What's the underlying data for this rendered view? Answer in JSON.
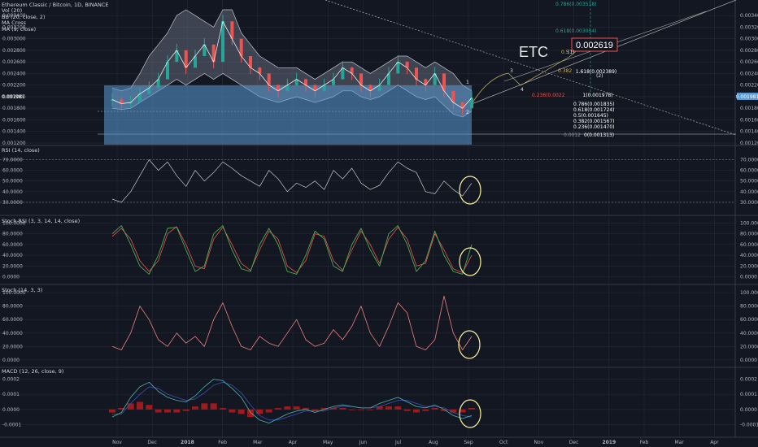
{
  "colors": {
    "background": "#131722",
    "grid": "#252a36",
    "pane_border": "#363a45",
    "rsi_line": "#c9c9c9",
    "stoch_rsi_k": "#4caf50",
    "stoch_rsi_d": "#ef5350",
    "stoch_k": "#f08080",
    "macd_line": "#4db6ac",
    "signal_line": "#3f51b5",
    "histogram": "#b71c1c",
    "highlight_circle": "#fff59d",
    "volume_fill": "#5b9bd5",
    "bb_fill": "#8c96a8",
    "fib_text": "#ffffff",
    "fib_green": "#26a69a",
    "fib_red": "#ef5350"
  },
  "header": {
    "title": "Ethereum Classic / Bitcoin, 1D, BINANCE",
    "studies": [
      "Vol (20)",
      "BB (20, close, 2)",
      "MA Cross",
      "MA (9, close)"
    ]
  },
  "annotations": {
    "symbol_text": "ETC",
    "price_box": "0.002619",
    "last_price_tag": "0.001981",
    "wave_labels": [
      "3",
      "4",
      "(1)",
      "(2)",
      "1",
      "2"
    ],
    "fib_levels": [
      "0.786(0.003518)",
      "0.618(0.003054)",
      "0.5",
      "1.618(0.002389)",
      "0.382",
      "1(0.001978)",
      "0.236(0.0022",
      "0.786(0.001835)",
      "0.618(0.001724)",
      "0.5(0.001645)",
      "0.382(0.001567)",
      "0.236(0.001470)",
      "0(0.001313)",
      "0.0012"
    ]
  },
  "x_axis": {
    "labels": [
      "Nov",
      "Dec",
      "2018",
      "Feb",
      "Mar",
      "Apr",
      "May",
      "Jun",
      "Jul",
      "Aug",
      "Sep",
      "Oct",
      "Nov",
      "Dec",
      "2019",
      "Feb",
      "Mar",
      "Apr"
    ]
  },
  "chart_data": [
    {
      "type": "bar",
      "title": "Ethereum Classic / Bitcoin, 1D, BINANCE",
      "ylim": [
        0.0012,
        0.0035
      ],
      "y_ticks": [
        "0.003400",
        "0.003200",
        "0.003000",
        "0.002800",
        "0.002600",
        "0.002400",
        "0.002200",
        "0.002000",
        "0.001800",
        "0.001600",
        "0.001400",
        "0.001200"
      ],
      "x_range": [
        "Oct 2017",
        "Apr 2019"
      ],
      "price_close": [
        0.00195,
        0.00188,
        0.0019,
        0.00205,
        0.00215,
        0.0023,
        0.0026,
        0.0028,
        0.0025,
        0.0027,
        0.0029,
        0.0026,
        0.0033,
        0.003,
        0.0027,
        0.0025,
        0.0024,
        0.0022,
        0.0021,
        0.0022,
        0.0023,
        0.0022,
        0.0021,
        0.0022,
        0.0023,
        0.0025,
        0.0024,
        0.0022,
        0.0021,
        0.0022,
        0.0024,
        0.0026,
        0.0025,
        0.0023,
        0.0022,
        0.0024,
        0.0021,
        0.0019,
        0.0018,
        0.00198
      ],
      "bb_upper": [
        0.00215,
        0.0021,
        0.00215,
        0.0024,
        0.0027,
        0.0029,
        0.0031,
        0.0034,
        0.0035,
        0.0034,
        0.0033,
        0.0032,
        0.0035,
        0.0035,
        0.0031,
        0.0029,
        0.0027,
        0.0026,
        0.0025,
        0.0025,
        0.0025,
        0.0024,
        0.0023,
        0.0024,
        0.0025,
        0.0026,
        0.0026,
        0.0025,
        0.0024,
        0.0025,
        0.0026,
        0.0027,
        0.0027,
        0.0026,
        0.0025,
        0.0026,
        0.0025,
        0.0024,
        0.0022,
        0.0021
      ],
      "bb_lower": [
        0.0018,
        0.00178,
        0.0018,
        0.0019,
        0.002,
        0.0021,
        0.0022,
        0.0023,
        0.0022,
        0.0023,
        0.0024,
        0.0023,
        0.0024,
        0.0023,
        0.0022,
        0.0021,
        0.002,
        0.00195,
        0.0019,
        0.00195,
        0.002,
        0.00195,
        0.0019,
        0.00195,
        0.002,
        0.0021,
        0.0021,
        0.002,
        0.00195,
        0.002,
        0.0021,
        0.0022,
        0.0021,
        0.002,
        0.00195,
        0.002,
        0.00185,
        0.0017,
        0.00165,
        0.00175
      ]
    },
    {
      "type": "line",
      "title": "RSI (14, close)",
      "ylim": [
        20,
        75
      ],
      "y_ticks": [
        "70.0000",
        "60.0000",
        "50.0000",
        "40.0000",
        "30.0000"
      ],
      "series": [
        {
          "name": "RSI (14, close)",
          "values": [
            33,
            30,
            40,
            55,
            70,
            60,
            68,
            55,
            45,
            60,
            50,
            58,
            68,
            62,
            55,
            50,
            45,
            60,
            52,
            40,
            48,
            44,
            50,
            42,
            60,
            52,
            62,
            48,
            42,
            46,
            58,
            68,
            62,
            58,
            40,
            38,
            50,
            42,
            36,
            48
          ]
        }
      ]
    },
    {
      "type": "line",
      "title": "Stoch RSI (3, 3, 14, 14, close)",
      "ylim": [
        -5,
        105
      ],
      "y_ticks": [
        "100.0000",
        "80.0000",
        "60.0000",
        "40.0000",
        "20.0000",
        "0.0000"
      ],
      "series": [
        {
          "name": "K",
          "values": [
            80,
            95,
            60,
            20,
            5,
            40,
            90,
            92,
            50,
            10,
            20,
            80,
            95,
            50,
            15,
            10,
            60,
            90,
            60,
            10,
            5,
            40,
            85,
            70,
            20,
            10,
            60,
            90,
            50,
            20,
            80,
            95,
            60,
            10,
            30,
            85,
            40,
            10,
            5,
            60
          ]
        },
        {
          "name": "D",
          "values": [
            75,
            90,
            70,
            30,
            10,
            30,
            80,
            93,
            60,
            20,
            15,
            70,
            92,
            60,
            25,
            12,
            50,
            85,
            70,
            20,
            8,
            30,
            80,
            75,
            30,
            12,
            50,
            85,
            60,
            25,
            70,
            92,
            70,
            20,
            25,
            80,
            50,
            15,
            8,
            40
          ]
        }
      ]
    },
    {
      "type": "line",
      "title": "Stoch (14, 3, 3)",
      "ylim": [
        -5,
        105
      ],
      "y_ticks": [
        "100.0000",
        "80.0000",
        "60.0000",
        "40.0000",
        "20.0000",
        "0.0000"
      ],
      "series": [
        {
          "name": "Stoch (14, 3, 3)",
          "values": [
            20,
            15,
            40,
            80,
            60,
            30,
            20,
            40,
            25,
            35,
            20,
            60,
            85,
            50,
            20,
            15,
            35,
            25,
            20,
            40,
            60,
            30,
            20,
            25,
            45,
            30,
            50,
            80,
            40,
            20,
            50,
            85,
            70,
            20,
            15,
            30,
            95,
            40,
            15,
            35
          ]
        }
      ]
    },
    {
      "type": "line",
      "title": "MACD (12, 26, close, 9)",
      "ylim": [
        -0.00013,
        0.00023
      ],
      "y_ticks": [
        "0.0002",
        "0.0001",
        "0.0000",
        "-0.0001"
      ],
      "series": [
        {
          "name": "MACD",
          "values": [
            -5e-05,
            -2e-05,
            8e-05,
            0.00015,
            0.00018,
            0.00012,
            8e-05,
            6e-05,
            5e-05,
            9e-05,
            0.00015,
            0.0002,
            0.00019,
            0.00014,
            8e-05,
            -2e-05,
            -7e-05,
            -9e-05,
            -6e-05,
            -3e-05,
            -1e-05,
            0.0,
            -2e-05,
            0.0,
            2e-05,
            3e-05,
            2e-05,
            1e-05,
            1e-05,
            4e-05,
            6e-05,
            8e-05,
            5e-05,
            2e-05,
            1e-05,
            3e-05,
            0.0,
            -4e-05,
            -6e-05,
            -4e-05
          ]
        },
        {
          "name": "Signal",
          "values": [
            -3e-05,
            -3e-05,
            4e-05,
            0.0001,
            0.00015,
            0.00014,
            0.0001,
            8e-05,
            6e-05,
            7e-05,
            0.00011,
            0.00016,
            0.00018,
            0.00016,
            0.00011,
            3e-05,
            -4e-05,
            -7e-05,
            -7e-05,
            -5e-05,
            -3e-05,
            -1e-05,
            -1e-05,
            -1e-05,
            1e-05,
            2e-05,
            2e-05,
            1e-05,
            1e-05,
            2e-05,
            4e-05,
            6e-05,
            6e-05,
            4e-05,
            2e-05,
            2e-05,
            1e-05,
            -2e-05,
            -4e-05,
            -5e-05
          ]
        }
      ],
      "histogram": [
        -2e-05,
        1e-05,
        4e-05,
        5e-05,
        3e-05,
        -2e-05,
        -2e-05,
        -2e-05,
        -1e-05,
        2e-05,
        4e-05,
        4e-05,
        1e-05,
        -2e-05,
        -3e-05,
        -5e-05,
        -3e-05,
        -2e-05,
        1e-05,
        2e-05,
        2e-05,
        1e-05,
        -1e-05,
        1e-05,
        1e-05,
        1e-05,
        0.0,
        0.0,
        0.0,
        2e-05,
        2e-05,
        2e-05,
        -1e-05,
        -2e-05,
        -1e-05,
        1e-05,
        -1e-05,
        -2e-05,
        -2e-05,
        1e-05
      ]
    }
  ]
}
